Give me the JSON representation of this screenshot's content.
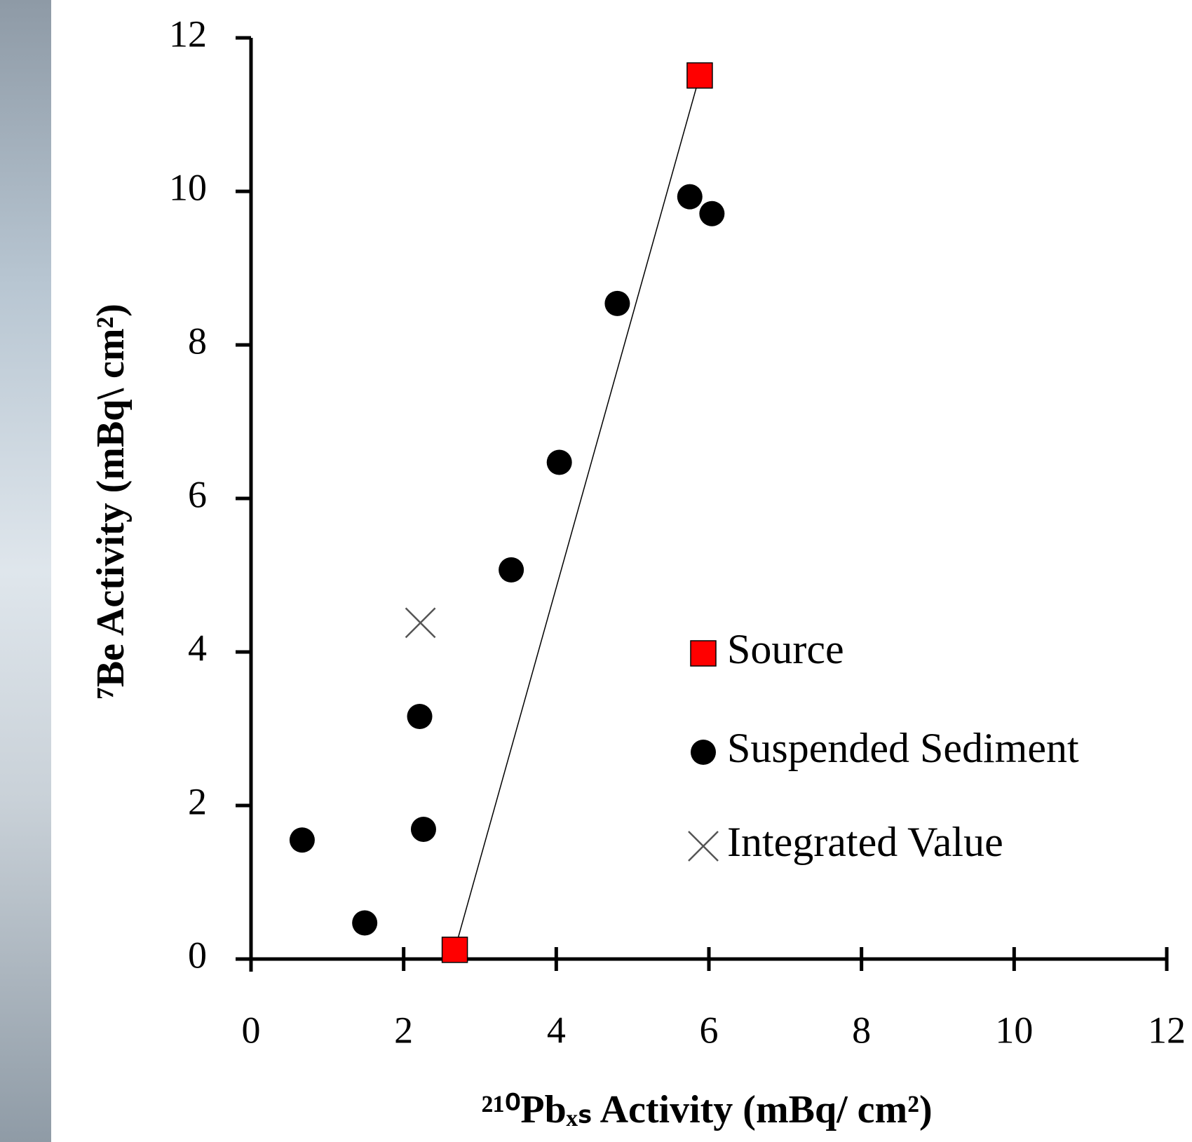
{
  "chart_data": {
    "type": "scatter",
    "x_label": "²¹⁰Pbₓₛ Activity (mBq/ cm²)",
    "y_label": "⁷Be Activity (mBq\\ cm²)",
    "xlim": [
      0,
      12
    ],
    "xticks": [
      0,
      2,
      4,
      6,
      8,
      10,
      12
    ],
    "ylim": [
      0,
      12
    ],
    "yticks": [
      0,
      2,
      4,
      6,
      8,
      10,
      12
    ],
    "series": [
      {
        "name": "Source",
        "color": "#ff0000",
        "marker": "square",
        "line": true,
        "x": [
          2.67,
          5.88
        ],
        "values": [
          0.12,
          11.51
        ]
      },
      {
        "name": "Suspended Sediment",
        "color": "#000000",
        "marker": "circle",
        "x": [
          0.67,
          1.49,
          2.26,
          2.21,
          3.41,
          4.04,
          4.8,
          5.75,
          6.04
        ],
        "values": [
          1.55,
          0.47,
          1.69,
          3.16,
          5.07,
          6.47,
          8.54,
          9.93,
          9.71
        ]
      },
      {
        "name": "Integrated Value",
        "color": "#555555",
        "marker": "x",
        "x": [
          2.22
        ],
        "values": [
          4.38
        ]
      }
    ]
  }
}
